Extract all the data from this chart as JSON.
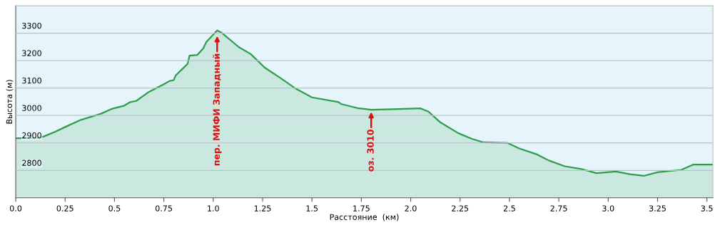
{
  "chart_data": {
    "type": "area",
    "xlabel": "Расстояние  (км)",
    "ylabel": "Высота (м)",
    "x": [
      0.0,
      0.1,
      0.14,
      0.2,
      0.25,
      0.33,
      0.43,
      0.49,
      0.55,
      0.58,
      0.61,
      0.67,
      0.75,
      0.78,
      0.8,
      0.81,
      0.87,
      0.88,
      0.92,
      0.95,
      0.965,
      1.02,
      1.04,
      1.13,
      1.19,
      1.26,
      1.35,
      1.42,
      1.5,
      1.635,
      1.647,
      1.73,
      1.8,
      1.91,
      2.05,
      2.09,
      2.15,
      2.24,
      2.31,
      2.37,
      2.49,
      2.55,
      2.64,
      2.7,
      2.78,
      2.87,
      2.94,
      3.04,
      3.11,
      3.18,
      3.25,
      3.37,
      3.43,
      3.53
    ],
    "series": [
      {
        "color": "#2e9e4a",
        "values": [
          2917,
          2918,
          2923,
          2941,
          2958,
          2984,
          3006,
          3025,
          3036,
          3049,
          3053,
          3084,
          3114,
          3126,
          3129,
          3146,
          3188,
          3218,
          3221,
          3245,
          3268,
          3310,
          3303,
          3249,
          3224,
          3175,
          3132,
          3097,
          3066,
          3049,
          3042,
          3027,
          3021,
          3023,
          3026,
          3014,
          2975,
          2936,
          2915,
          2902,
          2900,
          2880,
          2858,
          2836,
          2815,
          2804,
          2790,
          2796,
          2786,
          2780,
          2793,
          2802,
          2821,
          2821
        ]
      }
    ],
    "xlim": [
      0,
      3.53
    ],
    "ylim": [
      2700,
      3400
    ],
    "xticks": [
      {
        "value": 0,
        "label": "0.0"
      },
      0.25,
      0.5,
      0.75,
      {
        "value": 1,
        "label": "1.0"
      },
      1.25,
      1.5,
      1.75,
      {
        "value": 2,
        "label": "2.0"
      },
      2.25,
      2.5,
      2.75,
      {
        "value": 3,
        "label": "3.0"
      },
      3.25,
      3.5
    ],
    "yticks": [
      2800,
      2900,
      3000,
      3100,
      3200,
      3300
    ],
    "grid": "y",
    "annotations": [
      {
        "text": "пер. МИФИ Западный",
        "x": 1.02,
        "y": 3290
      },
      {
        "text": "оз. 3010",
        "x": 1.8,
        "y": 3013
      }
    ]
  }
}
